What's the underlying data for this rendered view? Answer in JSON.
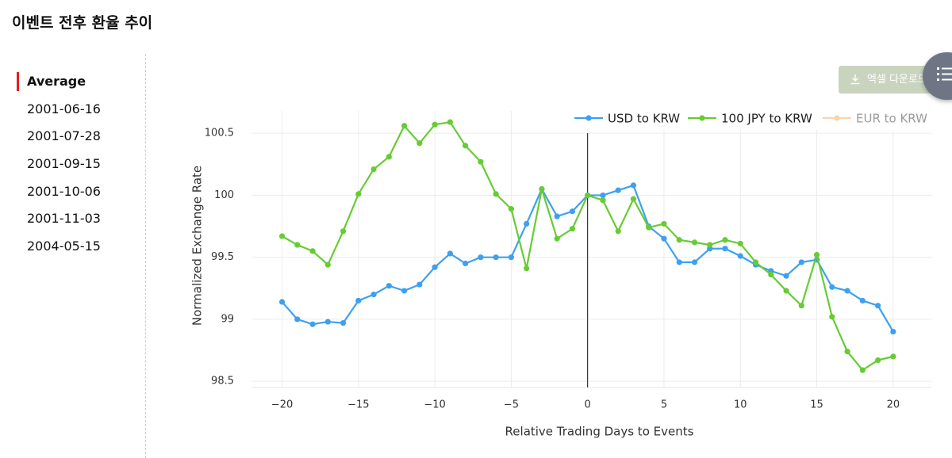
{
  "header": {
    "title": "이벤트 전후 환율 추이"
  },
  "sidebar": {
    "items": [
      "Average",
      "2001-06-16",
      "2001-07-28",
      "2001-09-15",
      "2001-10-06",
      "2001-11-03",
      "2004-05-15"
    ],
    "selected": 0
  },
  "download_button": {
    "label": "엑셀 다운로드"
  },
  "chart_data": {
    "type": "line",
    "x_label": "Relative Trading Days to Events",
    "y_label": "Normalized Exchange Rate",
    "x": [
      -20,
      -19,
      -18,
      -17,
      -16,
      -15,
      -14,
      -13,
      -12,
      -11,
      -10,
      -9,
      -8,
      -7,
      -6,
      -5,
      -4,
      -3,
      -2,
      -1,
      0,
      1,
      2,
      3,
      4,
      5,
      6,
      7,
      8,
      9,
      10,
      11,
      12,
      13,
      14,
      15,
      16,
      17,
      18,
      19,
      20
    ],
    "series": [
      {
        "name": "USD to KRW",
        "color": "#3ea0f0",
        "visible": true,
        "values": [
          99.14,
          99.0,
          98.96,
          98.98,
          98.97,
          99.15,
          99.2,
          99.27,
          99.23,
          99.28,
          99.42,
          99.53,
          99.45,
          99.5,
          99.5,
          99.5,
          99.77,
          100.05,
          99.83,
          99.87,
          100,
          100.0,
          100.04,
          100.08,
          99.75,
          99.65,
          99.46,
          99.46,
          99.57,
          99.57,
          99.51,
          99.44,
          99.39,
          99.35,
          99.46,
          99.48,
          99.26,
          99.23,
          99.15,
          99.11,
          98.9
        ]
      },
      {
        "name": "100 JPY to KRW",
        "color": "#66cc33",
        "visible": true,
        "values": [
          99.67,
          99.6,
          99.55,
          99.44,
          99.71,
          100.01,
          100.21,
          100.31,
          100.56,
          100.42,
          100.57,
          100.59,
          100.4,
          100.27,
          100.01,
          99.89,
          99.41,
          100.05,
          99.65,
          99.73,
          100,
          99.96,
          99.71,
          99.97,
          99.74,
          99.77,
          99.64,
          99.62,
          99.6,
          99.64,
          99.61,
          99.46,
          99.36,
          99.23,
          99.11,
          99.52,
          99.02,
          98.74,
          98.59,
          98.67,
          98.7
        ]
      },
      {
        "name": "EUR to KRW",
        "color": "#f5a040",
        "visible": false,
        "values": [
          null,
          null,
          null,
          null,
          null,
          null,
          null,
          null,
          null,
          null,
          null,
          null,
          null,
          null,
          null,
          null,
          null,
          null,
          null,
          null,
          null,
          null,
          null,
          null,
          null,
          null,
          null,
          null,
          null,
          null,
          null,
          null,
          null,
          null,
          null,
          null,
          null,
          null,
          null,
          null,
          null
        ]
      }
    ],
    "xlim": [
      -22,
      22.5
    ],
    "ylim": [
      98.45,
      100.68
    ],
    "xticks": [
      {
        "value": -20,
        "label": "−20"
      },
      {
        "value": -15,
        "label": "−15"
      },
      {
        "value": -10,
        "label": "−10"
      },
      {
        "value": -5,
        "label": "−5"
      },
      0,
      5,
      10,
      15,
      20
    ],
    "yticks": [
      98.5,
      99,
      99.5,
      100,
      100.5
    ],
    "grid": true,
    "event_line_x": 0,
    "legend": "top-right"
  }
}
